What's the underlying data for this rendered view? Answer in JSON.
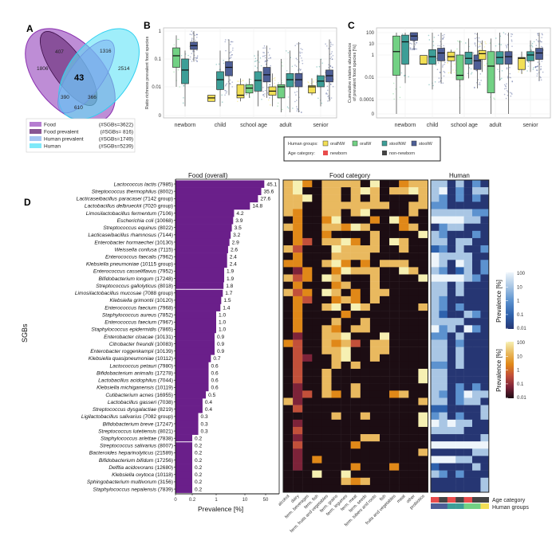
{
  "panel_labels": {
    "a": "A",
    "b": "B",
    "c": "C",
    "d": "D"
  },
  "colors": {
    "food": "#a35cc4",
    "food_prevalent": "#6b2a78",
    "human_prevalent": "#8fb8f0",
    "human": "#5fe3f7",
    "bar": "#6a1f8a",
    "oralNW": "#f2df55",
    "oralW": "#72d184",
    "stoolNW": "#3c9e97",
    "stoolW": "#4d5e96",
    "newborn": "#e84c4c",
    "non_newborn": "#444444",
    "food_scale": [
      "#1c0d13",
      "#7d2339",
      "#c2503a",
      "#e08818",
      "#e9b95f",
      "#f6f0b2"
    ],
    "human_scale": [
      "#263673",
      "#2e62ad",
      "#5c92cf",
      "#a9c6e4",
      "#eef5fb"
    ]
  },
  "chart_data": [
    {
      "id": "A",
      "type": "venn",
      "regions": {
        "food_only": "1806",
        "food_prevalent_only": "407",
        "human_prevalent_only": "1316",
        "human_only": "2514",
        "all_core": "43",
        "food_humanprev": "390",
        "foodprev_human": "366",
        "food_human": "610"
      },
      "legend": [
        {
          "label": "Food",
          "count": "(#SGBs=3622)"
        },
        {
          "label": "Food prevalent",
          "count": "(#SGBs=  816)"
        },
        {
          "label": "Human prevalent",
          "count": "(#SGBs=1749)"
        },
        {
          "label": "Human",
          "count": "(#SGBs=5239)"
        }
      ]
    },
    {
      "id": "B",
      "type": "box",
      "ylabel": "Ratio richness prevalent food species",
      "yticks": [
        "1",
        "0.1",
        "0.01",
        "0"
      ],
      "categories": [
        "newborn",
        "child",
        "school age",
        "adult",
        "senior"
      ],
      "boxes": [
        {
          "cat": 0,
          "group": "oralW",
          "med": 0.13,
          "q1": 0.05,
          "q3": 0.25,
          "lo": 0.01,
          "hi": 0.7
        },
        {
          "cat": 0,
          "group": "stoolNW",
          "med": 0.04,
          "q1": 0.013,
          "q3": 0.1,
          "lo": 0.002,
          "hi": 0.2
        },
        {
          "cat": 0,
          "group": "stoolW",
          "med": 0.3,
          "q1": 0.22,
          "q3": 0.4,
          "lo": 0.08,
          "hi": 1
        },
        {
          "cat": 1,
          "group": "oralNW",
          "med": 0.004,
          "q1": 0.003,
          "q3": 0.005,
          "lo": 0.003,
          "hi": 0.005
        },
        {
          "cat": 1,
          "group": "stoolNW",
          "med": 0.018,
          "q1": 0.008,
          "q3": 0.035,
          "lo": 0.002,
          "hi": 0.2
        },
        {
          "cat": 1,
          "group": "stoolW",
          "med": 0.05,
          "q1": 0.025,
          "q3": 0.08,
          "lo": 0.005,
          "hi": 0.5
        },
        {
          "cat": 2,
          "group": "oralNW",
          "med": 0.005,
          "q1": 0.004,
          "q3": 0.012,
          "lo": 0.003,
          "hi": 0.02
        },
        {
          "cat": 2,
          "group": "oralW",
          "med": 0.009,
          "q1": 0.006,
          "q3": 0.012,
          "lo": 0.004,
          "hi": 0.02
        },
        {
          "cat": 2,
          "group": "stoolNW",
          "med": 0.017,
          "q1": 0.007,
          "q3": 0.035,
          "lo": 0.002,
          "hi": 0.2
        },
        {
          "cat": 2,
          "group": "stoolW",
          "med": 0.027,
          "q1": 0.015,
          "q3": 0.05,
          "lo": 0.004,
          "hi": 0.3
        },
        {
          "cat": 3,
          "group": "oralNW",
          "med": 0.007,
          "q1": 0.005,
          "q3": 0.01,
          "lo": 0.002,
          "hi": 0.03
        },
        {
          "cat": 3,
          "group": "oralW",
          "med": 0.01,
          "q1": 0.004,
          "q3": 0.012,
          "lo": 0.001,
          "hi": 0.1
        },
        {
          "cat": 3,
          "group": "stoolNW",
          "med": 0.018,
          "q1": 0.01,
          "q3": 0.03,
          "lo": 0.001,
          "hi": 0.2
        },
        {
          "cat": 3,
          "group": "stoolW",
          "med": 0.018,
          "q1": 0.01,
          "q3": 0.03,
          "lo": 0.001,
          "hi": 0.4
        },
        {
          "cat": 4,
          "group": "oralNW",
          "med": 0.01,
          "q1": 0.006,
          "q3": 0.011,
          "lo": 0.005,
          "hi": 0.02
        },
        {
          "cat": 4,
          "group": "stoolNW",
          "med": 0.016,
          "q1": 0.01,
          "q3": 0.025,
          "lo": 0.002,
          "hi": 0.1
        },
        {
          "cat": 4,
          "group": "stoolW",
          "med": 0.025,
          "q1": 0.015,
          "q3": 0.04,
          "lo": 0.003,
          "hi": 0.5
        }
      ]
    },
    {
      "id": "C",
      "type": "box",
      "ylabel": "Cumulative relative abundance",
      "ylabel2": "of prevalent food species [%]",
      "yticks": [
        "100",
        "10",
        "1",
        "0.01",
        "0.0001",
        "0"
      ],
      "categories": [
        "newborn",
        "child",
        "school age",
        "adult",
        "senior"
      ],
      "boxes": [
        {
          "cat": 0,
          "group": "oralW",
          "med": 2,
          "q1": 0.015,
          "q3": 50,
          "lo": 0,
          "hi": 100
        },
        {
          "cat": 0,
          "group": "stoolNW",
          "med": 15,
          "q1": 0.15,
          "q3": 60,
          "lo": 0.003,
          "hi": 100
        },
        {
          "cat": 0,
          "group": "stoolW",
          "med": 50,
          "q1": 20,
          "q3": 100,
          "lo": 3,
          "hi": 100
        },
        {
          "cat": 1,
          "group": "oralNW",
          "med": 0.15,
          "q1": 0.15,
          "q3": 0.9,
          "lo": 0.15,
          "hi": 0.9
        },
        {
          "cat": 1,
          "group": "stoolNW",
          "med": 0.7,
          "q1": 0.15,
          "q3": 3,
          "lo": 0.0008,
          "hi": 100
        },
        {
          "cat": 1,
          "group": "stoolW",
          "med": 1.5,
          "q1": 0.3,
          "q3": 4,
          "lo": 0.003,
          "hi": 100
        },
        {
          "cat": 2,
          "group": "oralNW",
          "med": 0.7,
          "q1": 0.3,
          "q3": 1.8,
          "lo": 0.02,
          "hi": 3
        },
        {
          "cat": 2,
          "group": "oralW",
          "med": 0.015,
          "q1": 0.006,
          "q3": 1,
          "lo": 0,
          "hi": 20
        },
        {
          "cat": 2,
          "group": "stoolNW",
          "med": 0.5,
          "q1": 0.15,
          "q3": 1.8,
          "lo": 0.008,
          "hi": 30
        },
        {
          "cat": 2,
          "group": "stoolW",
          "med": 0.3,
          "q1": 0.05,
          "q3": 1,
          "lo": 0.001,
          "hi": 100
        },
        {
          "cat": 3,
          "group": "oralNW",
          "med": 1.3,
          "q1": 0.4,
          "q3": 2.5,
          "lo": 0.03,
          "hi": 20
        },
        {
          "cat": 3,
          "group": "oralW",
          "med": 0.1,
          "q1": 0.0004,
          "q3": 2,
          "lo": 0,
          "hi": 30
        },
        {
          "cat": 3,
          "group": "stoolNW",
          "med": 0.6,
          "q1": 0.15,
          "q3": 2,
          "lo": 0.005,
          "hi": 100
        },
        {
          "cat": 3,
          "group": "stoolW",
          "med": 0.7,
          "q1": 0.15,
          "q3": 2,
          "lo": 0,
          "hi": 100
        },
        {
          "cat": 4,
          "group": "oralNW",
          "med": 0.5,
          "q1": 0.05,
          "q3": 0.6,
          "lo": 0.02,
          "hi": 2
        },
        {
          "cat": 4,
          "group": "stoolNW",
          "med": 1,
          "q1": 0.3,
          "q3": 2,
          "lo": 0.03,
          "hi": 20
        },
        {
          "cat": 4,
          "group": "stoolW",
          "med": 1.5,
          "q1": 0.4,
          "q3": 4,
          "lo": 0.005,
          "hi": 100
        }
      ]
    },
    {
      "id": "D-bars",
      "type": "bar",
      "title": "Food (overall)",
      "xlabel": "Prevalence [%]",
      "ylabel": "SGBs",
      "xticks": [
        "0",
        "0.2",
        "1",
        "10",
        "50"
      ],
      "bars": [
        {
          "name": "Lactococcus lactis",
          "sgb": " (7985)",
          "value": "45.1"
        },
        {
          "name": "Streptococcus thermophilus",
          "sgb": " (8002)",
          "value": "35.6"
        },
        {
          "name": "Lacticaseibacillus paracasei",
          "sgb": " (7142 group)",
          "value": "27.6"
        },
        {
          "name": "Lactobacillus delbrueckii",
          "sgb": " (7020 group)",
          "value": "14.8"
        },
        {
          "name": "Limosilactobacillus fermentum",
          "sgb": " (7106)",
          "value": "4.2"
        },
        {
          "name": "Escherichia coli",
          "sgb": " (10068)",
          "value": "3.9"
        },
        {
          "name": "Streptococcus equinus",
          "sgb": " (8022)",
          "value": "3.5"
        },
        {
          "name": "Lacticaseibacillus rhamnosus",
          "sgb": " (7144)",
          "value": "3.2"
        },
        {
          "name": "Enterobacter hormaechei",
          "sgb": " (10130)",
          "value": "2.9"
        },
        {
          "name": "Weissella confusa",
          "sgb": " (7115)",
          "value": "2.6"
        },
        {
          "name": "Enterococcus faecalis",
          "sgb": " (7962)",
          "value": "2.4"
        },
        {
          "name": "Klebsiella pneumoniae",
          "sgb": " (10115 group)",
          "value": "2.4"
        },
        {
          "name": "Enterococcus casseliflavus",
          "sgb": " (7952)",
          "value": "1.9"
        },
        {
          "name": "Bifidobacterium longum",
          "sgb": " (17248)",
          "value": "1.9"
        },
        {
          "name": "Streptococcus gallolyticus",
          "sgb": " (8018)",
          "value": "1.8"
        },
        {
          "name": "Limosilactobacillus mucosae",
          "sgb": " (7088 group)",
          "value": "1.7"
        },
        {
          "name": "Klebsiella grimontii",
          "sgb": " (10120)",
          "value": "1.5"
        },
        {
          "name": "Enterococcus faecium",
          "sgb": " (7968)",
          "value": "1.4"
        },
        {
          "name": "Staphylococcus aureus",
          "sgb": " (7852)",
          "value": "1.0"
        },
        {
          "name": "Enterococcus faecium",
          "sgb": " (7967)",
          "value": "1.0"
        },
        {
          "name": "Staphylococcus epidermidis",
          "sgb": " (7865)",
          "value": "1.0"
        },
        {
          "name": "Enterobacter cloacae",
          "sgb": " (10131)",
          "value": "0.9"
        },
        {
          "name": "Citrobacter freundii",
          "sgb": " (10083)",
          "value": "0.9"
        },
        {
          "name": "Enterobacter roggenkampii",
          "sgb": " (10139)",
          "value": "0.9"
        },
        {
          "name": "Klebsiella quasipneumoniae",
          "sgb": " (10112)",
          "value": "0.7"
        },
        {
          "name": "Lactococcus petauri",
          "sgb": " (7980)",
          "value": "0.6"
        },
        {
          "name": "Bifidobacterium animalis",
          "sgb": " (17278)",
          "value": "0.6"
        },
        {
          "name": "Lactobacillus acidophilus",
          "sgb": " (7044)",
          "value": "0.6"
        },
        {
          "name": "Klebsiella michiganensis",
          "sgb": " (10119)",
          "value": "0.6"
        },
        {
          "name": "Cutibacterium acnes",
          "sgb": " (16955)",
          "value": "0.5"
        },
        {
          "name": "Lactobacillus gasseri",
          "sgb": " (7038)",
          "value": "0.4"
        },
        {
          "name": "Streptococcus dysgalactiae",
          "sgb": " (8219)",
          "value": "0.4"
        },
        {
          "name": "Ligilactobacillus salivarius",
          "sgb": " (7082 group)",
          "value": "0.3"
        },
        {
          "name": "Bifidobacterium breve",
          "sgb": " (17247)",
          "value": "0.3"
        },
        {
          "name": "Streptococcus lutetiensis",
          "sgb": " (8021)",
          "value": "0.3"
        },
        {
          "name": "Staphylococcus arlettae",
          "sgb": " (7838)",
          "value": "0.2"
        },
        {
          "name": "Streptococcus salivarius",
          "sgb": " (8007)",
          "value": "0.2"
        },
        {
          "name": "Bacteroides heparinolyticus",
          "sgb": " (21589)",
          "value": "0.2"
        },
        {
          "name": "Bifidobacterium bifidum",
          "sgb": " (17256)",
          "value": "0.2"
        },
        {
          "name": "Delftia acidovorans",
          "sgb": " (12680)",
          "value": "0.2"
        },
        {
          "name": "Klebsiella oxytoca",
          "sgb": " (10118)",
          "value": "0.2"
        },
        {
          "name": "Sphingobacterium multivorum",
          "sgb": " (3156)",
          "value": "0.2"
        },
        {
          "name": "Staphylococcus nepalensis",
          "sgb": " (7839)",
          "value": "0.2"
        }
      ]
    },
    {
      "id": "D-food-category",
      "type": "heatmap",
      "title": "Food category",
      "level_meaning": "0=none/0.01, 1=0.1, 2=~0.5, 3=1, 4=10, 5=100 (% prevalence)",
      "columns": [
        "alcohol",
        "dairy",
        "ferm. beverages",
        "ferm. fish",
        "ferm. fruits and vegetables",
        "ferm. grains",
        "ferm. legumes",
        "ferm. meat",
        "ferm. seeds",
        "ferm. tubers and roots",
        "fish",
        "fruits and vegetables",
        "meat",
        "other",
        "probiotics"
      ],
      "rows": [
        "453044440500344",
        "450044045404454",
        "445044040400004",
        "440044444440044",
        "430044045000040",
        "030035000305300",
        "430044354000340",
        "030030000400005",
        "032044530405400",
        "420005444400400",
        "030004444000000",
        "330045303044400",
        "013003544400540",
        "423054000400005",
        "030003400400000",
        "423054030440000",
        "032003430400000",
        "030045054000004",
        "030000300000000",
        "030004004000000",
        "030043044000000",
        "010044500050000",
        "320043420440000",
        "020044500440000",
        "021004500400000",
        "020004040000000",
        "020040000000005",
        "020040000000005",
        "010040040000000",
        "012043040003400",
        "410000000000004",
        "020000000000000",
        "000004004000005",
        "010000000000005",
        "020000000000000",
        "010000004400000",
        "020000030000000",
        "010000000000004",
        "010300000000000",
        "010000030003000",
        "000500500000000",
        "000000434000000",
        "000000000000000"
      ]
    },
    {
      "id": "D-human",
      "type": "heatmap",
      "title": "Human",
      "level_meaning": "0=0.01, 1=0.1, 2=1, 3=10, 4=100 (% prevalence)",
      "rows": [
        "3303020",
        "3402033",
        "3202020",
        "2200000",
        "3333322",
        "4444330",
        "0233000",
        "3200020",
        "3303300",
        "1203002",
        "4333300",
        "4304302",
        "3201302",
        "4444320",
        "3303000",
        "3303000",
        "3200000",
        "3202000",
        "3100320",
        "3333000",
        "4230420",
        "2203000",
        "3302000",
        "3303000",
        "3303000",
        "2203000",
        "3300000",
        "3300000",
        "3302020",
        "3202433",
        "3302330",
        "1100003",
        "2302003",
        "4343300",
        "3333000",
        "0000003",
        "4444444",
        "0000033",
        "4443300",
        "1000030",
        "3202000",
        "0000003",
        "0000003"
      ],
      "age_category": [
        "newborn",
        "non-newborn",
        "newborn",
        "non-newborn",
        "newborn",
        "non-newborn",
        "non-newborn"
      ],
      "human_groups": [
        "stoolW",
        "stoolW",
        "stoolNW",
        "stoolNW",
        "oralW",
        "oralW",
        "oralNW"
      ],
      "strip_labels": {
        "age": "Age category",
        "groups": "Human groups"
      }
    }
  ],
  "legend_bc": {
    "groups_label": "Human groups:",
    "age_label": "Age category:",
    "groups": [
      "oralNW",
      "oralW",
      "stoolNW",
      "stoolW"
    ],
    "ages": [
      "newborn",
      "non-newborn"
    ]
  },
  "colorbars": {
    "title": "Prevalence [%]",
    "ticks": [
      "100",
      "10",
      "1",
      "0.1",
      "0.01"
    ]
  }
}
